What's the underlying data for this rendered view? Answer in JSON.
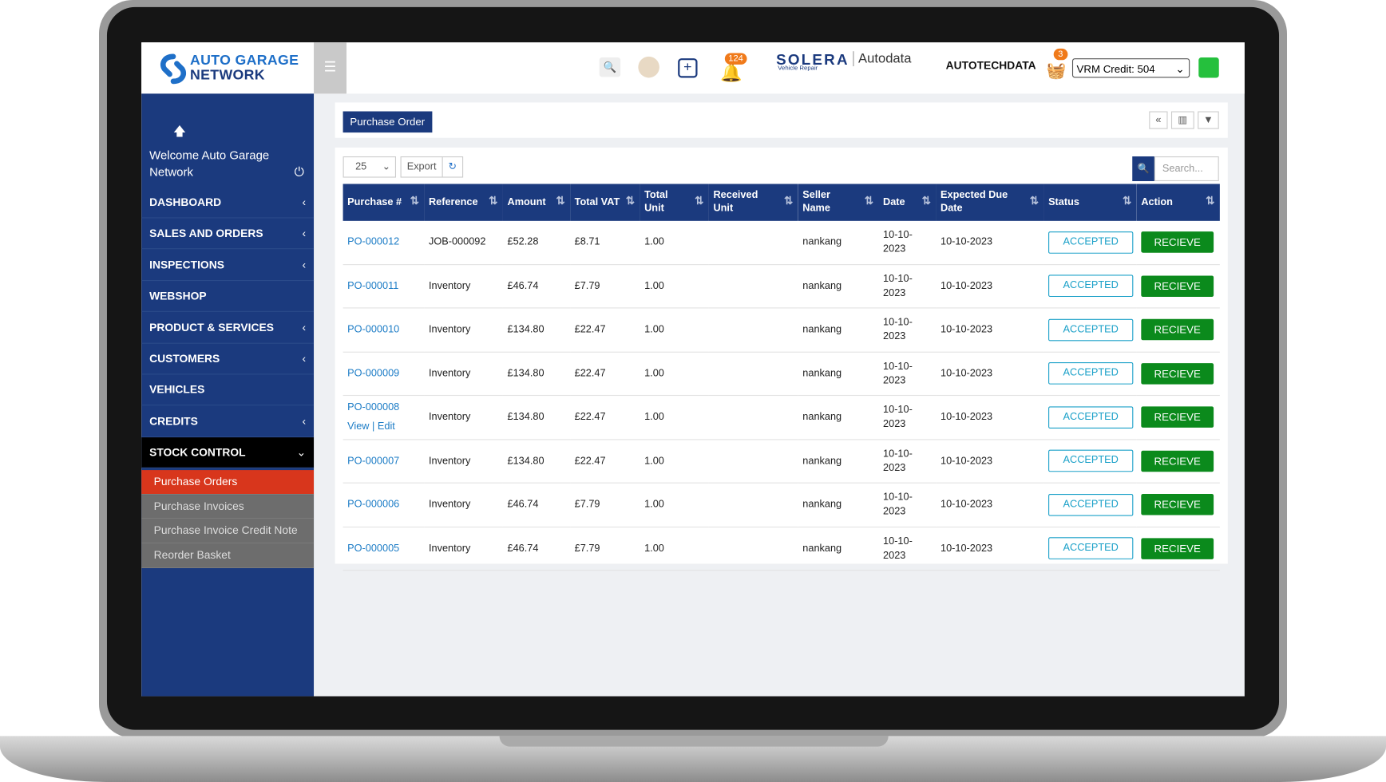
{
  "header": {
    "logo_line1": "AUTO GARAGE",
    "logo_line2": "NETWORK",
    "notifications": "124",
    "brand1": "SOLERA",
    "brand1_sub": "Vehicle Repair",
    "brand2": "Autodata",
    "brand3": "AUTOTECHDATA",
    "cart": "3",
    "vrm_credit": "VRM Credit: 504"
  },
  "sidebar": {
    "welcome": "Welcome Auto Garage Network",
    "menu": [
      {
        "label": "DASHBOARD",
        "arrow": true
      },
      {
        "label": "SALES AND ORDERS",
        "arrow": true
      },
      {
        "label": "INSPECTIONS",
        "arrow": true
      },
      {
        "label": "WEBSHOP",
        "arrow": false
      },
      {
        "label": "PRODUCT & SERVICES",
        "arrow": true
      },
      {
        "label": "CUSTOMERS",
        "arrow": true
      },
      {
        "label": "VEHICLES",
        "arrow": false
      },
      {
        "label": "CREDITS",
        "arrow": true
      },
      {
        "label": "STOCK CONTROL",
        "arrow": true,
        "expanded": true
      }
    ],
    "submenu": [
      {
        "label": "Purchase Orders",
        "active": true
      },
      {
        "label": "Purchase Invoices"
      },
      {
        "label": "Purchase Invoice Credit Note"
      },
      {
        "label": "Reorder Basket"
      }
    ]
  },
  "page": {
    "title": "Purchase Order",
    "page_size": "25",
    "export": "Export",
    "search_placeholder": "Search..."
  },
  "table": {
    "columns": [
      "Purchase #",
      "Reference",
      "Amount",
      "Total VAT",
      "Total Unit",
      "Received Unit",
      "Seller Name",
      "Date",
      "Expected Due Date",
      "Status",
      "Action"
    ],
    "rows": [
      {
        "purchase": "PO-000012",
        "reference": "JOB-000092",
        "amount": "£52.28",
        "vat": "£8.71",
        "unit": "1.00",
        "seller": "nankang",
        "date": "10-10-2023",
        "due": "10-10-2023",
        "status": "ACCEPTED",
        "action": "RECIEVE"
      },
      {
        "purchase": "PO-000011",
        "reference": "Inventory",
        "amount": "£46.74",
        "vat": "£7.79",
        "unit": "1.00",
        "seller": "nankang",
        "date": "10-10-2023",
        "due": "10-10-2023",
        "status": "ACCEPTED",
        "action": "RECIEVE"
      },
      {
        "purchase": "PO-000010",
        "reference": "Inventory",
        "amount": "£134.80",
        "vat": "£22.47",
        "unit": "1.00",
        "seller": "nankang",
        "date": "10-10-2023",
        "due": "10-10-2023",
        "status": "ACCEPTED",
        "action": "RECIEVE"
      },
      {
        "purchase": "PO-000009",
        "reference": "Inventory",
        "amount": "£134.80",
        "vat": "£22.47",
        "unit": "1.00",
        "seller": "nankang",
        "date": "10-10-2023",
        "due": "10-10-2023",
        "status": "ACCEPTED",
        "action": "RECIEVE"
      },
      {
        "purchase": "PO-000008",
        "links": [
          "View",
          "Edit"
        ],
        "reference": "Inventory",
        "amount": "£134.80",
        "vat": "£22.47",
        "unit": "1.00",
        "seller": "nankang",
        "date": "10-10-2023",
        "due": "10-10-2023",
        "status": "ACCEPTED",
        "action": "RECIEVE"
      },
      {
        "purchase": "PO-000007",
        "reference": "Inventory",
        "amount": "£134.80",
        "vat": "£22.47",
        "unit": "1.00",
        "seller": "nankang",
        "date": "10-10-2023",
        "due": "10-10-2023",
        "status": "ACCEPTED",
        "action": "RECIEVE"
      },
      {
        "purchase": "PO-000006",
        "reference": "Inventory",
        "amount": "£46.74",
        "vat": "£7.79",
        "unit": "1.00",
        "seller": "nankang",
        "date": "10-10-2023",
        "due": "10-10-2023",
        "status": "ACCEPTED",
        "action": "RECIEVE"
      },
      {
        "purchase": "PO-000005",
        "reference": "Inventory",
        "amount": "£46.74",
        "vat": "£7.79",
        "unit": "1.00",
        "seller": "nankang",
        "date": "10-10-2023",
        "due": "10-10-2023",
        "status": "ACCEPTED",
        "action": "RECIEVE"
      }
    ]
  }
}
